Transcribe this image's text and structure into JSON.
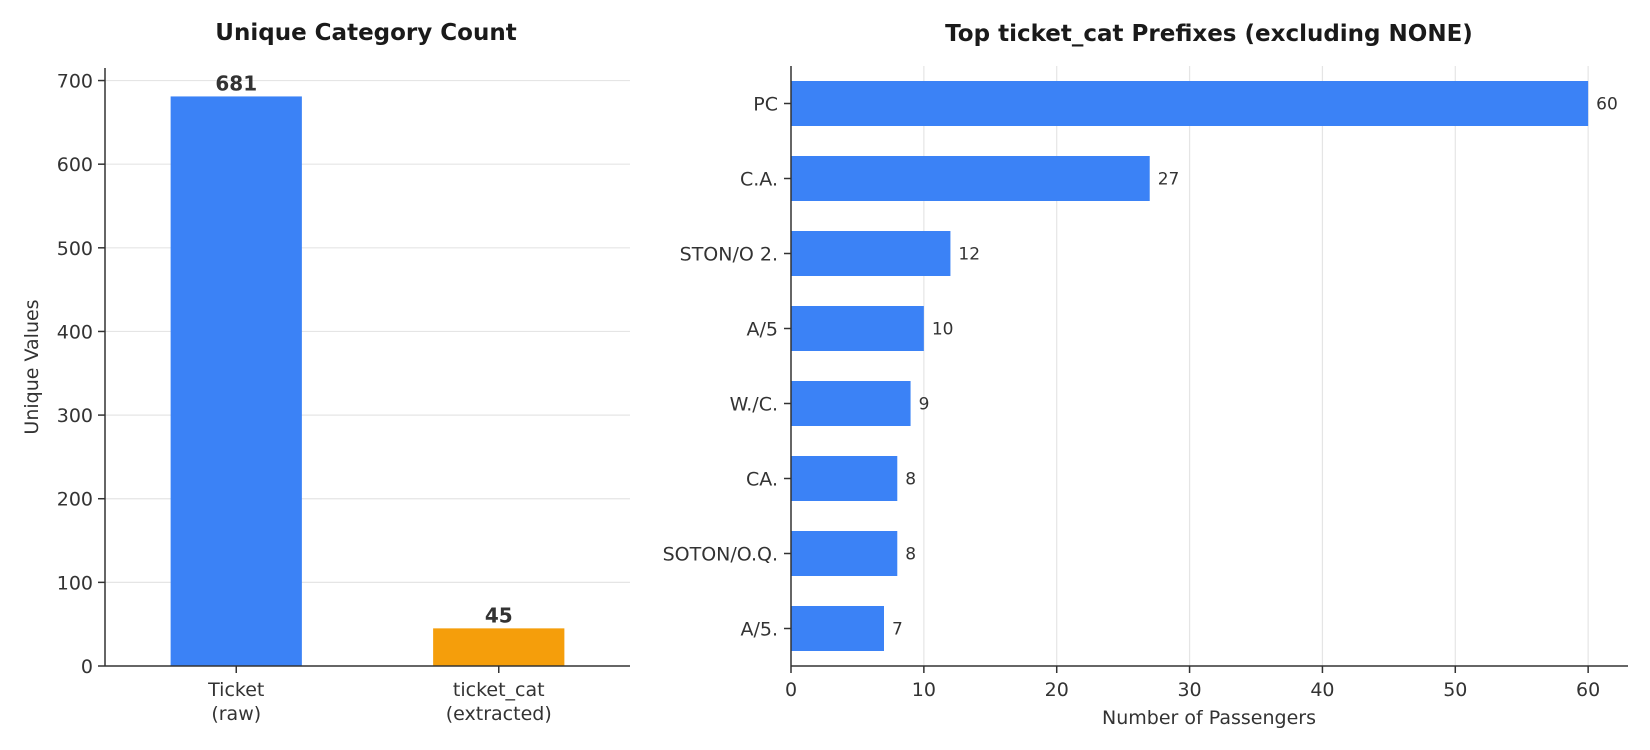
{
  "chart_data": [
    {
      "type": "bar",
      "title": "Unique Category Count",
      "xlabel": "",
      "ylabel": "Unique Values",
      "categories": [
        [
          "Ticket",
          "(raw)"
        ],
        [
          "ticket_cat",
          "(extracted)"
        ]
      ],
      "values": [
        681,
        45
      ],
      "colors": [
        "#3b82f6",
        "#f59e0b"
      ],
      "ylim": [
        0,
        715
      ],
      "yticks": [
        0,
        100,
        200,
        300,
        400,
        500,
        600,
        700
      ],
      "grid": "y",
      "data_labels": true
    },
    {
      "type": "bar",
      "orientation": "horizontal",
      "title": "Top ticket_cat Prefixes (excluding NONE)",
      "xlabel": "Number of Passengers",
      "ylabel": "",
      "categories": [
        "PC",
        "C.A.",
        "STON/O 2.",
        "A/5",
        "W./C.",
        "CA.",
        "SOTON/O.Q.",
        "A/5."
      ],
      "values": [
        60,
        27,
        12,
        10,
        9,
        8,
        8,
        7
      ],
      "colors": [
        "#3b82f6"
      ],
      "xlim": [
        0,
        63
      ],
      "xticks": [
        0,
        10,
        20,
        30,
        40,
        50,
        60
      ],
      "grid": "x",
      "data_labels": true
    }
  ]
}
